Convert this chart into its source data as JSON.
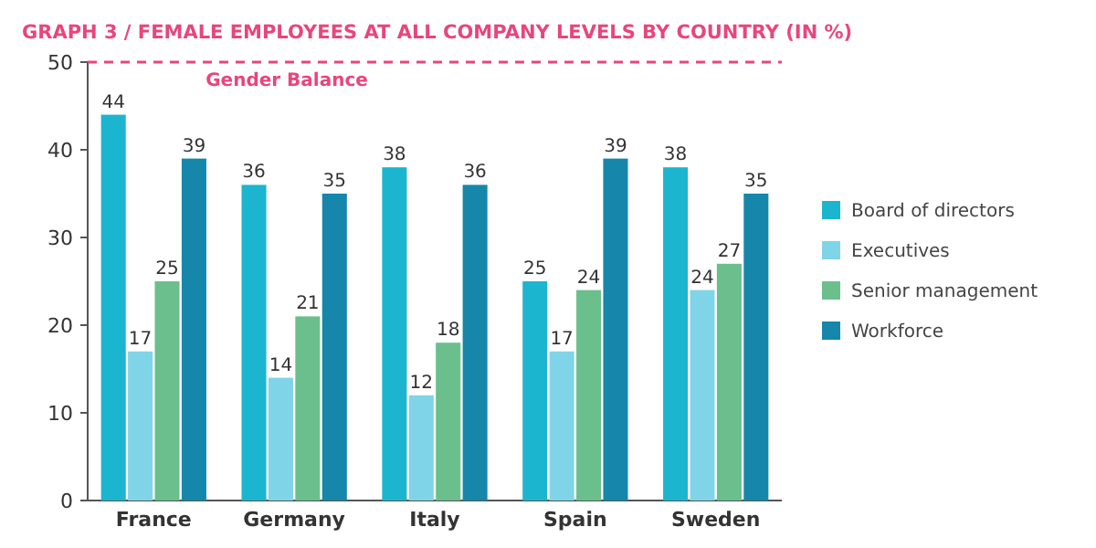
{
  "chart_data": {
    "type": "bar",
    "title": "GRAPH 3 / FEMALE EMPLOYEES AT ALL COMPANY LEVELS BY COUNTRY (IN %)",
    "categories": [
      "France",
      "Germany",
      "Italy",
      "Spain",
      "Sweden"
    ],
    "series": [
      {
        "name": "Board of directors",
        "color": "#1cb5cf",
        "values": [
          44,
          36,
          38,
          25,
          38
        ]
      },
      {
        "name": "Executives",
        "color": "#80d4e8",
        "values": [
          17,
          14,
          12,
          17,
          24
        ]
      },
      {
        "name": "Senior management",
        "color": "#6bbf8c",
        "values": [
          25,
          21,
          18,
          24,
          27
        ]
      },
      {
        "name": "Workforce",
        "color": "#1687aa",
        "values": [
          39,
          35,
          36,
          39,
          35
        ]
      }
    ],
    "ylim": [
      0,
      50
    ],
    "yticks": [
      0,
      10,
      20,
      30,
      40,
      50
    ],
    "ref_lines": [
      {
        "axis": "y",
        "value": 50,
        "label": "Gender Balance",
        "color": "#e8457e",
        "line_style": "dashed"
      }
    ],
    "data_labels": true,
    "legend": "right"
  }
}
